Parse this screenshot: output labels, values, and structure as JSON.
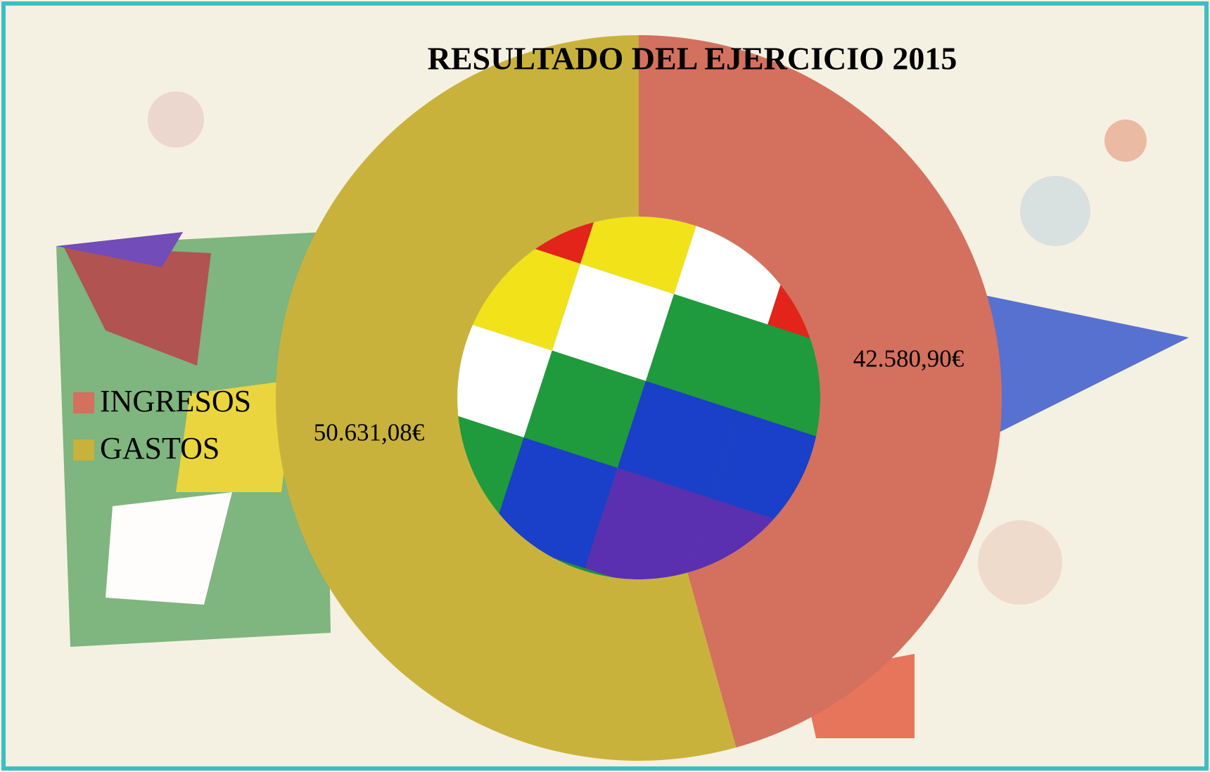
{
  "chart_data": {
    "type": "donut",
    "title": "RESULTADO DEL EJERCICIO 2015",
    "categories": [
      "INGRESOS",
      "GASTOS"
    ],
    "values": [
      42580.9,
      50631.08
    ],
    "value_labels": [
      "42.580,90€",
      "50.631,08€"
    ],
    "colors": [
      "#d4705e",
      "#c9b23c"
    ],
    "legend": "left"
  }
}
